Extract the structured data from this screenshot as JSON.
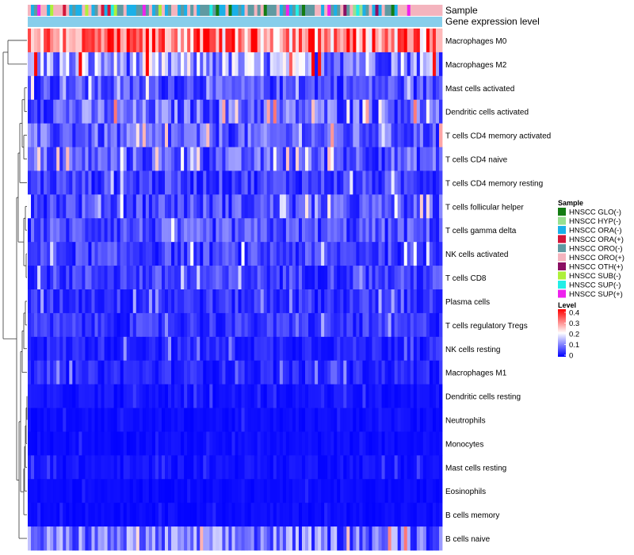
{
  "chart_data": {
    "type": "heatmap",
    "annotation_labels": [
      "Sample",
      "Gene expression level"
    ],
    "rows": [
      "Macrophages M0",
      "Macrophages M2",
      "Mast cells activated",
      "Dendritic cells activated",
      "T cells CD4 memory activated",
      "T cells CD4 naive",
      "T cells CD4 memory resting",
      "T cells follicular helper",
      "T cells gamma delta",
      "NK cells activated",
      "T cells CD8",
      "Plasma cells",
      "T cells regulatory  Tregs",
      "NK cells resting",
      "Macrophages M1",
      "Dendritic cells resting",
      "Neutrophils",
      "Monocytes",
      "Mast cells resting",
      "Eosinophils",
      "B cells memory",
      "B cells naive"
    ],
    "row_levels_approx": [
      0.3,
      0.12,
      0.06,
      0.08,
      0.07,
      0.07,
      0.05,
      0.06,
      0.06,
      0.05,
      0.05,
      0.04,
      0.04,
      0.03,
      0.03,
      0.015,
      0.01,
      0.01,
      0.015,
      0.008,
      0.01,
      0.09
    ],
    "n_samples": 130,
    "sample_legend": {
      "title": "Sample",
      "entries": [
        {
          "label": "HNSCC GLO(-)",
          "color": "#137c13"
        },
        {
          "label": "HNSCC HYP(-)",
          "color": "#98e090"
        },
        {
          "label": "HNSCC ORA(-)",
          "color": "#1ab0e8"
        },
        {
          "label": "HNSCC ORA(+)",
          "color": "#d4163a"
        },
        {
          "label": "HNSCC ORO(-)",
          "color": "#5f9aa2"
        },
        {
          "label": "HNSCC ORO(+)",
          "color": "#f4b4be"
        },
        {
          "label": "HNSCC OTH(+)",
          "color": "#8b0f63"
        },
        {
          "label": "HNSCC SUB(-)",
          "color": "#aef03a"
        },
        {
          "label": "HNSCC SUP(-)",
          "color": "#22eee6"
        },
        {
          "label": "HNSCC SUP(+)",
          "color": "#ee22ee"
        }
      ]
    },
    "level_legend": {
      "title": "Level",
      "ticks": [
        "0.4",
        "0.3",
        "0.2",
        "0.1",
        "0"
      ],
      "range": [
        0,
        0.4
      ],
      "colors": [
        "#0000ff",
        "#ffffff",
        "#ff0000"
      ]
    },
    "gene_expression_color": "#87ceeb"
  }
}
